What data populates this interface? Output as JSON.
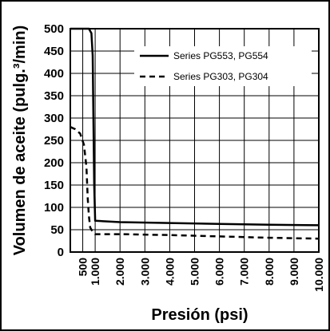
{
  "chart_data": {
    "type": "line",
    "title": "",
    "xlabel": "Presión (psi)",
    "ylabel": "Volumen de aceite (pulg.³/min)",
    "xlim": [
      0,
      10000
    ],
    "ylim": [
      0,
      500
    ],
    "grid": true,
    "legend_position": "top-right",
    "x_tick_labels": [
      "500",
      "1.000",
      "2.000",
      "3.000",
      "4.000",
      "5.000",
      "6.000",
      "7.000",
      "8.000",
      "9.000",
      "10.000"
    ],
    "x_tick_values": [
      500,
      1000,
      2000,
      3000,
      4000,
      5000,
      6000,
      7000,
      8000,
      9000,
      10000
    ],
    "y_tick_labels": [
      "0",
      "50",
      "100",
      "150",
      "200",
      "250",
      "300",
      "350",
      "400",
      "450",
      "500"
    ],
    "y_tick_values": [
      0,
      50,
      100,
      150,
      200,
      250,
      300,
      350,
      400,
      450,
      500
    ],
    "series": [
      {
        "name": "Series PG553, PG554",
        "style": "solid",
        "points": [
          [
            0,
            500
          ],
          [
            750,
            500
          ],
          [
            850,
            490
          ],
          [
            900,
            440
          ],
          [
            930,
            300
          ],
          [
            960,
            150
          ],
          [
            1000,
            70
          ],
          [
            2000,
            67
          ],
          [
            4000,
            65
          ],
          [
            6000,
            63
          ],
          [
            8000,
            61
          ],
          [
            10000,
            60
          ]
        ]
      },
      {
        "name": "Series PG303, PG304",
        "style": "dashed",
        "points": [
          [
            0,
            280
          ],
          [
            200,
            275
          ],
          [
            400,
            265
          ],
          [
            550,
            240
          ],
          [
            650,
            190
          ],
          [
            700,
            120
          ],
          [
            750,
            80
          ],
          [
            800,
            55
          ],
          [
            900,
            45
          ],
          [
            1000,
            40
          ],
          [
            2000,
            40
          ],
          [
            4000,
            38
          ],
          [
            6000,
            35
          ],
          [
            8000,
            32
          ],
          [
            10000,
            30
          ]
        ]
      }
    ],
    "colors": {
      "lines": "#000000",
      "grid": "#000000",
      "frame": "#000000"
    }
  }
}
